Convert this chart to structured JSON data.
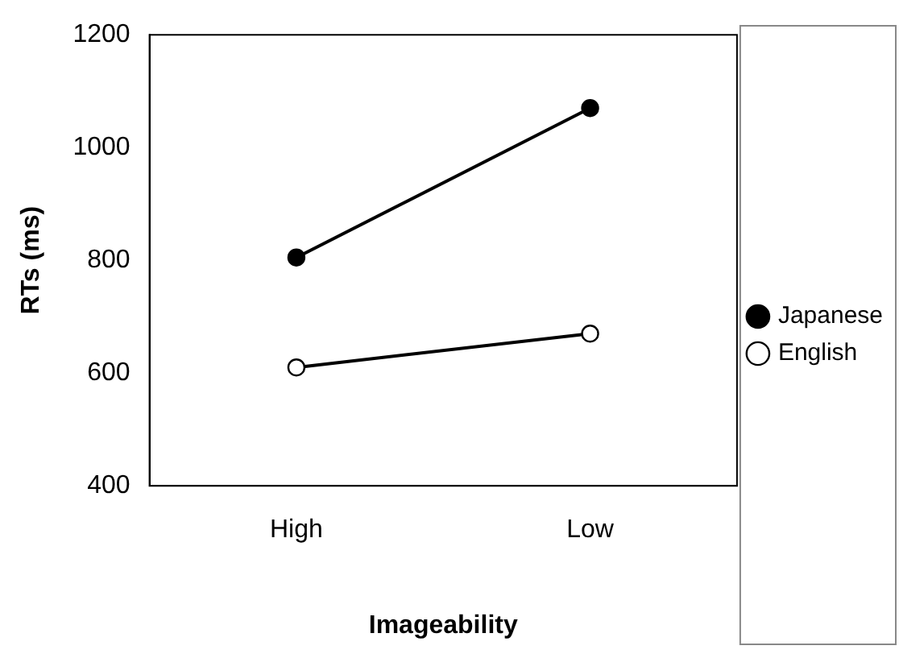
{
  "chart_data": {
    "type": "line",
    "xlabel": "Imageability",
    "ylabel": "RTs (ms)",
    "categories": [
      "High",
      "Low"
    ],
    "series": [
      {
        "name": "Japanese",
        "color": "#000000",
        "colors": [
          "#000000",
          "#000000"
        ],
        "values": [
          805,
          1070
        ]
      },
      {
        "name": "English",
        "color": "#000000",
        "colors": [
          "#ffffff",
          "#ffffff"
        ],
        "values": [
          610,
          670
        ]
      }
    ],
    "ylim": [
      400,
      1200
    ],
    "yticks": [
      400,
      600,
      800,
      1000,
      1200
    ],
    "grid": false,
    "legend": "right",
    "marker": "circle",
    "line_style": "solid"
  }
}
